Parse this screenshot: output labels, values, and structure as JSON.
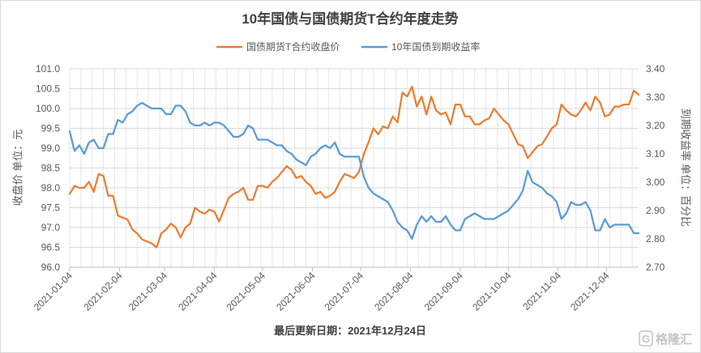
{
  "chart_data": {
    "type": "line",
    "title": "10年国债与国债期货T合约年度走势",
    "legend_position": "top",
    "grid": true,
    "x": [
      "2021-01-04",
      "2021-01-07",
      "2021-01-10",
      "2021-01-13",
      "2021-01-16",
      "2021-01-19",
      "2021-01-22",
      "2021-01-25",
      "2021-01-28",
      "2021-01-31",
      "2021-02-03",
      "2021-02-06",
      "2021-02-09",
      "2021-02-12",
      "2021-02-15",
      "2021-02-18",
      "2021-02-21",
      "2021-02-24",
      "2021-02-27",
      "2021-03-02",
      "2021-03-05",
      "2021-03-08",
      "2021-03-11",
      "2021-03-14",
      "2021-03-17",
      "2021-03-20",
      "2021-03-23",
      "2021-03-26",
      "2021-03-29",
      "2021-04-01",
      "2021-04-04",
      "2021-04-07",
      "2021-04-10",
      "2021-04-13",
      "2021-04-16",
      "2021-04-19",
      "2021-04-22",
      "2021-04-25",
      "2021-04-28",
      "2021-05-01",
      "2021-05-04",
      "2021-05-07",
      "2021-05-10",
      "2021-05-13",
      "2021-05-16",
      "2021-05-19",
      "2021-05-22",
      "2021-05-25",
      "2021-05-28",
      "2021-05-31",
      "2021-06-03",
      "2021-06-06",
      "2021-06-09",
      "2021-06-12",
      "2021-06-15",
      "2021-06-18",
      "2021-06-21",
      "2021-06-24",
      "2021-06-27",
      "2021-06-30",
      "2021-07-03",
      "2021-07-06",
      "2021-07-09",
      "2021-07-12",
      "2021-07-15",
      "2021-07-18",
      "2021-07-21",
      "2021-07-24",
      "2021-07-27",
      "2021-07-30",
      "2021-08-02",
      "2021-08-05",
      "2021-08-08",
      "2021-08-11",
      "2021-08-14",
      "2021-08-17",
      "2021-08-20",
      "2021-08-23",
      "2021-08-26",
      "2021-08-29",
      "2021-09-01",
      "2021-09-04",
      "2021-09-07",
      "2021-09-10",
      "2021-09-13",
      "2021-09-16",
      "2021-09-19",
      "2021-09-22",
      "2021-09-25",
      "2021-09-28",
      "2021-10-01",
      "2021-10-04",
      "2021-10-07",
      "2021-10-10",
      "2021-10-13",
      "2021-10-16",
      "2021-10-19",
      "2021-10-22",
      "2021-10-25",
      "2021-10-28",
      "2021-10-31",
      "2021-11-03",
      "2021-11-06",
      "2021-11-09",
      "2021-11-12",
      "2021-11-15",
      "2021-11-18",
      "2021-11-21",
      "2021-11-24",
      "2021-11-27",
      "2021-11-30",
      "2021-12-03",
      "2021-12-06",
      "2021-12-09",
      "2021-12-12",
      "2021-12-15",
      "2021-12-18",
      "2021-12-21",
      "2021-12-24"
    ],
    "x_ticks": [
      "2021-01-04",
      "2021-02-04",
      "2021-03-04",
      "2021-04-04",
      "2021-05-04",
      "2021-06-04",
      "2021-07-04",
      "2021-08-04",
      "2021-09-04",
      "2021-10-04",
      "2021-11-04",
      "2021-12-04"
    ],
    "y_left": {
      "label": "收盘价 单位：元",
      "range": [
        96.0,
        101.0
      ],
      "ticks": [
        "101.0",
        "100.5",
        "100.0",
        "99.5",
        "99.0",
        "98.5",
        "98.0",
        "97.5",
        "97.0",
        "96.5",
        "96.0"
      ]
    },
    "y_right": {
      "label": "到期收益率 单位：百分比",
      "range": [
        2.7,
        3.4
      ],
      "ticks": [
        "3.40",
        "3.30",
        "3.20",
        "3.10",
        "3.00",
        "2.90",
        "2.80",
        "2.70"
      ]
    },
    "series": [
      {
        "name": "国债期货T合约收盘价",
        "axis": "left",
        "color": "#ED7D31",
        "values": [
          97.85,
          98.05,
          98.0,
          98.0,
          98.15,
          97.9,
          98.35,
          98.3,
          97.8,
          97.8,
          97.3,
          97.25,
          97.2,
          96.95,
          96.85,
          96.7,
          96.65,
          96.6,
          96.5,
          96.85,
          96.95,
          97.1,
          97.0,
          96.75,
          97.0,
          97.1,
          97.5,
          97.4,
          97.35,
          97.45,
          97.4,
          97.15,
          97.45,
          97.75,
          97.85,
          97.9,
          98.0,
          97.7,
          97.7,
          98.05,
          98.05,
          98.0,
          98.15,
          98.25,
          98.4,
          98.55,
          98.45,
          98.25,
          98.3,
          98.15,
          98.05,
          97.85,
          97.9,
          97.75,
          97.8,
          97.9,
          98.15,
          98.35,
          98.3,
          98.25,
          98.4,
          98.85,
          99.15,
          99.5,
          99.35,
          99.55,
          99.5,
          99.8,
          99.65,
          100.4,
          100.3,
          100.55,
          100.05,
          100.3,
          99.85,
          100.3,
          99.95,
          99.85,
          99.9,
          99.6,
          100.1,
          100.1,
          99.8,
          99.8,
          99.6,
          99.6,
          99.7,
          99.75,
          100.0,
          99.85,
          99.7,
          99.6,
          99.35,
          99.1,
          99.05,
          98.75,
          98.9,
          99.05,
          99.1,
          99.3,
          99.5,
          99.6,
          100.1,
          99.95,
          99.85,
          99.8,
          99.95,
          100.15,
          99.95,
          100.3,
          100.15,
          99.8,
          99.85,
          100.05,
          100.05,
          100.1,
          100.1,
          100.45,
          100.35
        ]
      },
      {
        "name": "10年国债到期收益率",
        "axis": "right",
        "color": "#5B9BD5",
        "values": [
          3.18,
          3.11,
          3.13,
          3.1,
          3.14,
          3.15,
          3.12,
          3.12,
          3.17,
          3.17,
          3.22,
          3.21,
          3.24,
          3.25,
          3.27,
          3.28,
          3.27,
          3.26,
          3.26,
          3.26,
          3.24,
          3.24,
          3.27,
          3.27,
          3.25,
          3.21,
          3.2,
          3.2,
          3.21,
          3.2,
          3.21,
          3.21,
          3.2,
          3.18,
          3.16,
          3.16,
          3.17,
          3.2,
          3.19,
          3.15,
          3.15,
          3.15,
          3.14,
          3.13,
          3.13,
          3.11,
          3.1,
          3.08,
          3.07,
          3.06,
          3.09,
          3.1,
          3.12,
          3.13,
          3.12,
          3.14,
          3.1,
          3.09,
          3.09,
          3.09,
          3.09,
          3.02,
          2.98,
          2.96,
          2.95,
          2.94,
          2.93,
          2.9,
          2.86,
          2.84,
          2.83,
          2.8,
          2.85,
          2.88,
          2.86,
          2.88,
          2.86,
          2.86,
          2.88,
          2.85,
          2.83,
          2.83,
          2.87,
          2.88,
          2.89,
          2.88,
          2.87,
          2.87,
          2.87,
          2.88,
          2.89,
          2.9,
          2.92,
          2.94,
          2.97,
          3.04,
          3.0,
          2.99,
          2.98,
          2.96,
          2.95,
          2.93,
          2.87,
          2.89,
          2.93,
          2.92,
          2.92,
          2.93,
          2.9,
          2.83,
          2.83,
          2.87,
          2.84,
          2.85,
          2.85,
          2.85,
          2.85,
          2.82,
          2.82
        ]
      }
    ],
    "footnote": "最后更新日期：2021年12月24日"
  },
  "watermark": {
    "logo_letter": "G",
    "text": "格隆汇"
  }
}
